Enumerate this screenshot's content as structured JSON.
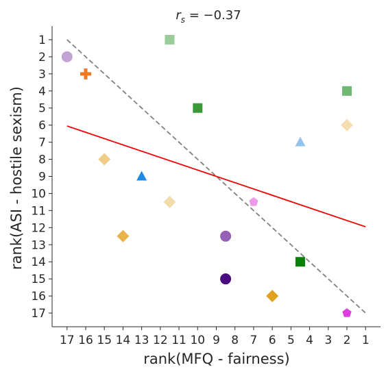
{
  "chart_data": {
    "type": "scatter",
    "title": "r_s = −0.37",
    "title_parts": {
      "var": "r",
      "sub": "s",
      "rest": " = −0.37"
    },
    "xlabel": "rank(MFQ - fairness)",
    "ylabel": "rank(ASI - hostile sexism)",
    "xlim": [
      17.8,
      0.2
    ],
    "ylim": [
      17.8,
      0.2
    ],
    "x_inverted": true,
    "y_inverted": true,
    "xticks": [
      17,
      16,
      15,
      14,
      13,
      12,
      11,
      10,
      9,
      8,
      7,
      6,
      5,
      4,
      3,
      2,
      1
    ],
    "yticks": [
      1,
      2,
      3,
      4,
      5,
      6,
      7,
      8,
      9,
      10,
      11,
      12,
      13,
      14,
      15,
      16,
      17
    ],
    "grid": false,
    "points": [
      {
        "x": 11.5,
        "y": 1,
        "marker": "square",
        "color": "#9acd9a"
      },
      {
        "x": 17,
        "y": 2,
        "marker": "circle",
        "color": "#c3a3d4"
      },
      {
        "x": 16,
        "y": 3,
        "marker": "plus",
        "color": "#f07820"
      },
      {
        "x": 2,
        "y": 4,
        "marker": "square",
        "color": "#72b872"
      },
      {
        "x": 10,
        "y": 5,
        "marker": "square",
        "color": "#3a9a3a"
      },
      {
        "x": 2,
        "y": 6,
        "marker": "diamond",
        "color": "#f5deb0"
      },
      {
        "x": 4.5,
        "y": 7,
        "marker": "triangle",
        "color": "#94c3f0"
      },
      {
        "x": 15,
        "y": 8,
        "marker": "diamond",
        "color": "#efcc88"
      },
      {
        "x": 13,
        "y": 9,
        "marker": "triangle",
        "color": "#1e88e5"
      },
      {
        "x": 11.5,
        "y": 10.5,
        "marker": "diamond",
        "color": "#f3dcac"
      },
      {
        "x": 7,
        "y": 10.5,
        "marker": "pentagon",
        "color": "#ee9aea"
      },
      {
        "x": 14,
        "y": 12.5,
        "marker": "diamond",
        "color": "#e8b34a"
      },
      {
        "x": 8.5,
        "y": 12.5,
        "marker": "circle",
        "color": "#9560b5"
      },
      {
        "x": 4.5,
        "y": 14,
        "marker": "square",
        "color": "#0a800a"
      },
      {
        "x": 8.5,
        "y": 15,
        "marker": "circle",
        "color": "#4a0a80"
      },
      {
        "x": 6,
        "y": 16,
        "marker": "diamond",
        "color": "#e0a020"
      },
      {
        "x": 2,
        "y": 17,
        "marker": "pentagon",
        "color": "#de3ede"
      }
    ],
    "identity_line": {
      "from": [
        17,
        1
      ],
      "to": [
        1,
        17
      ],
      "color": "#808080",
      "style": "dashed"
    },
    "fit_line": {
      "from": [
        17,
        6.05
      ],
      "to": [
        1,
        11.95
      ],
      "color": "#ee0000",
      "style": "solid"
    }
  }
}
